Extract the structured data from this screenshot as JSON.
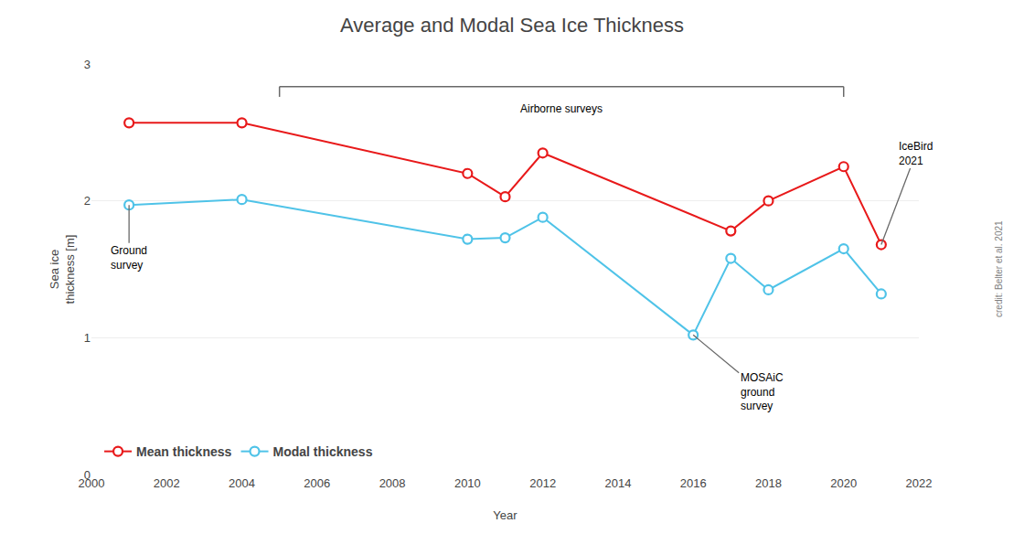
{
  "chart_data": {
    "type": "line",
    "title": "Average and Modal Sea Ice Thickness",
    "x_label": "Year",
    "y_label": "Sea ice\nthickness [m]",
    "series": [
      {
        "name": "Mean thickness",
        "color": "#e8191a",
        "marker": "circle",
        "line_style": "solid",
        "x": [
          2001,
          2004,
          2010,
          2011,
          2012,
          2017,
          2018,
          2020,
          2021
        ],
        "values": [
          2.57,
          2.57,
          2.2,
          2.03,
          2.35,
          1.78,
          2.0,
          2.25,
          1.68
        ]
      },
      {
        "name": "Modal thickness",
        "color": "#4fc3e8",
        "marker": "circle",
        "line_style": "solid",
        "x": [
          2001,
          2004,
          2010,
          2011,
          2012,
          2016,
          2017,
          2018,
          2020,
          2021
        ],
        "values": [
          1.97,
          2.01,
          1.72,
          1.73,
          1.88,
          1.02,
          1.58,
          1.35,
          1.65,
          1.32
        ]
      }
    ],
    "xlim": [
      2000,
      2022
    ],
    "xticks": [
      2000,
      2002,
      2004,
      2006,
      2008,
      2010,
      2012,
      2014,
      2016,
      2018,
      2020,
      2022
    ],
    "ylim": [
      0,
      3
    ],
    "yticks": [
      0,
      1,
      2,
      3
    ],
    "grid": "y",
    "legend": "lower left",
    "annotations": [
      {
        "text": "Airborne surveys",
        "x": [
          2005,
          2020
        ]
      },
      {
        "text": "Ground\nsurvey",
        "x": 2001,
        "y": 1.97
      },
      {
        "text": "MOSAiC\nground\nsurvey",
        "x": 2016,
        "y": 1.02
      },
      {
        "text": "IceBird\n2021",
        "x": 2021,
        "y": 1.68
      },
      {
        "text": "credit: Belter et al. 2021"
      }
    ]
  }
}
